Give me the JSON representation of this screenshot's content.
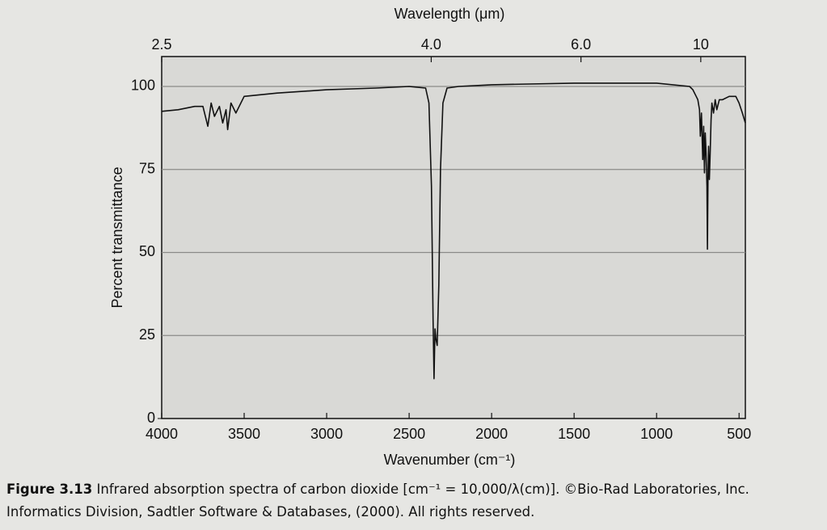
{
  "chart_data": {
    "type": "line",
    "x_title": "Wavenumber (cm⁻¹)",
    "x2_title": "Wavelength (μm)",
    "y_title": "Percent transmittance",
    "x": [
      4000,
      3900,
      3800,
      3750,
      3720,
      3700,
      3680,
      3650,
      3630,
      3610,
      3600,
      3580,
      3550,
      3500,
      3300,
      3000,
      2700,
      2500,
      2400,
      2380,
      2365,
      2355,
      2349,
      2343,
      2338,
      2330,
      2320,
      2310,
      2295,
      2270,
      2200,
      2000,
      1500,
      1000,
      800,
      780,
      760,
      750,
      740,
      735,
      728,
      720,
      715,
      710,
      705,
      700,
      695,
      692,
      688,
      685,
      680,
      675,
      670,
      665,
      655,
      645,
      635,
      620,
      600,
      560,
      520,
      500,
      480,
      462
    ],
    "series": [
      {
        "name": "CO2",
        "color": "#111111",
        "values": [
          92.5,
          93,
          94,
          94,
          88,
          95,
          91,
          94,
          89,
          93,
          87,
          95,
          92,
          97,
          98,
          99,
          99.5,
          100,
          99.5,
          95,
          70,
          30,
          12,
          27,
          24,
          22,
          40,
          75,
          95,
          99.5,
          100,
          100.5,
          101,
          101,
          100,
          99,
          97,
          96,
          93,
          85,
          92,
          78,
          88,
          74,
          86,
          80,
          70,
          51,
          75,
          82,
          72,
          80,
          90,
          95,
          92,
          96,
          93,
          96,
          96,
          97,
          97,
          95,
          92,
          89
        ]
      }
    ],
    "xlim": [
      4000,
      462
    ],
    "ylim": [
      0,
      109
    ],
    "xticks": [
      4000,
      3500,
      3000,
      2500,
      2000,
      1500,
      1000,
      500
    ],
    "yticks": [
      0,
      25,
      50,
      75,
      100
    ],
    "x2lim": [
      2.5,
      13.3
    ],
    "x2scale": "reciprocal",
    "x2ticks": [
      2.5,
      {
        "value": 4.0,
        "label": "4.0"
      },
      {
        "value": 6.0,
        "label": "6.0"
      },
      10
    ],
    "grid": true,
    "caption_label": "Figure 3.13",
    "caption_text": "Infrared absorption spectra of carbon dioxide [cm⁻¹ = 10,000/λ(cm)]. ©Bio-Rad Laboratories, Inc. Informatics Division, Sadtler Software & Databases, (2000). All rights reserved."
  }
}
